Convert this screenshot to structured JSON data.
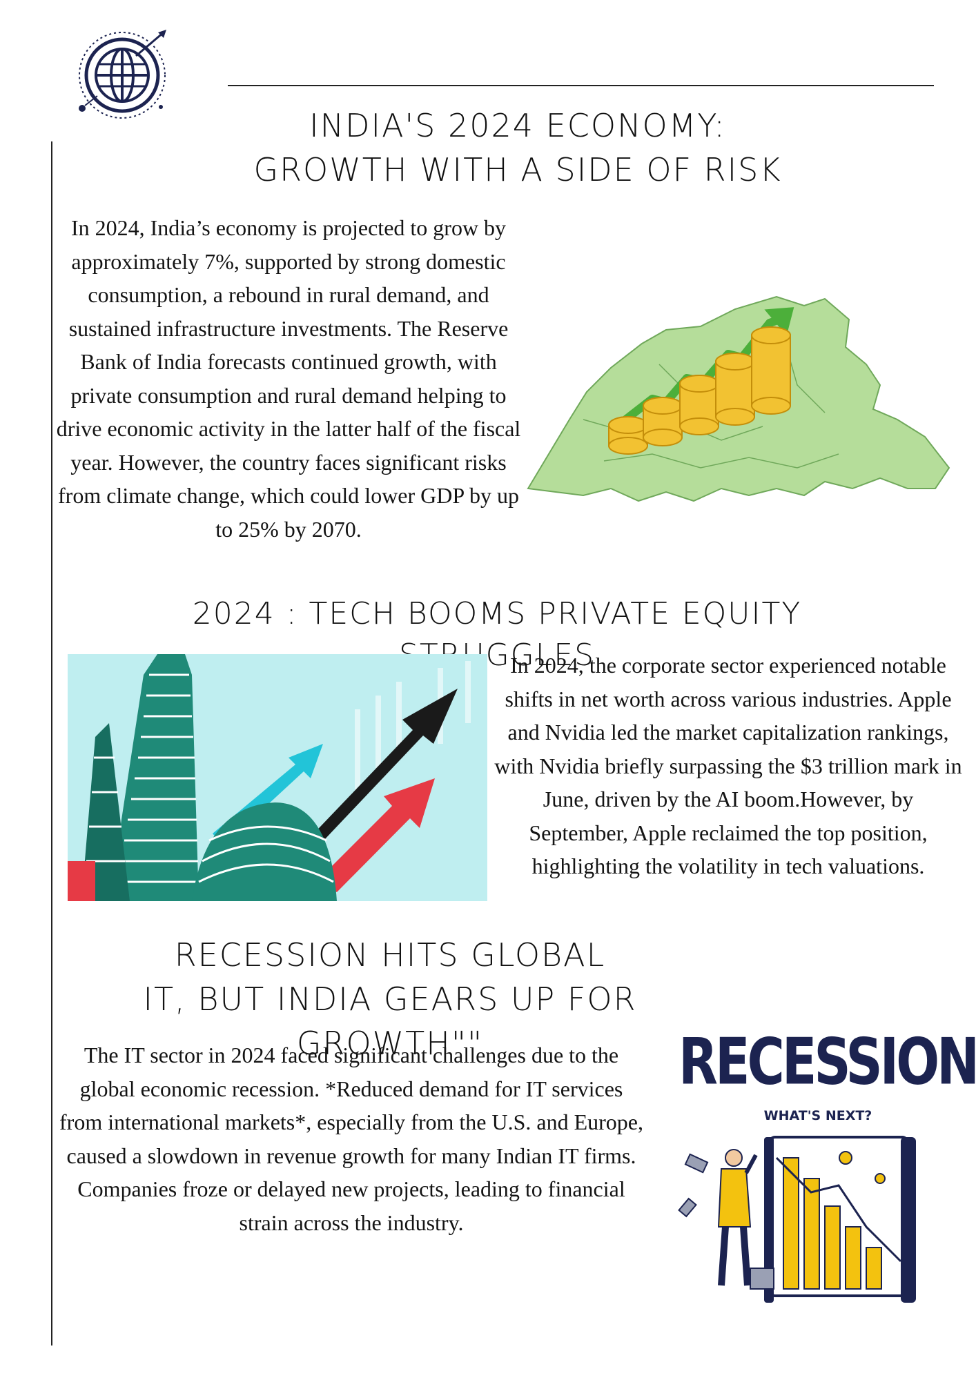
{
  "header": {
    "logo": "globe-logo"
  },
  "sections": [
    {
      "title_line1": "INDIA'S 2024 ECONOMY:",
      "title_line2": "GROWTH WITH A SIDE OF RISK",
      "body": "In 2024, India’s economy is projected to grow by approximately 7%, supported by strong domestic consumption, a rebound in rural demand, and sustained infrastructure investments. The Reserve Bank of India forecasts continued growth, with private consumption and rural demand helping to drive economic activity in the latter half of the fiscal year. However, the country faces significant risks from climate change, which could lower GDP by up to 25% by 2070.",
      "illustration": "india-map-coins-growth"
    },
    {
      "title_line1": "2024 : TECH BOOMS PRIVATE EQUITY STRUGGLES",
      "body": "In 2024, the corporate sector experienced notable shifts in net worth across various industries. Apple and Nvidia led the market capitalization rankings, with Nvidia briefly surpassing the $3 trillion mark in June, driven by the AI boom.However, by September, Apple reclaimed the top position, highlighting the volatility in tech valuations.",
      "illustration": "stock-exchange-arrows"
    },
    {
      "title_line1": "RECESSION HITS GLOBAL",
      "title_line2": "IT, BUT INDIA GEARS UP FOR GROWTH\"\"",
      "body": "The IT sector in 2024 faced significant challenges due to the global economic recession. *Reduced demand for IT services from international markets*, especially from the U.S. and Europe, caused a slowdown in revenue growth for many Indian IT firms. Companies froze or delayed new projects, leading to financial strain across the industry.",
      "illustration": {
        "big_word": "RECESSION",
        "caption": "WHAT'S NEXT?"
      }
    }
  ],
  "colors": {
    "navy": "#1c2350",
    "map_green": "#b5dd9a",
    "coin_gold": "#f2c232",
    "arrow_green": "#4caf3a",
    "teal": "#1f8a78",
    "arrow_red": "#e63a45",
    "arrow_cyan": "#22c4d8",
    "sky": "#bfeef0",
    "yellow": "#f3c20f"
  }
}
